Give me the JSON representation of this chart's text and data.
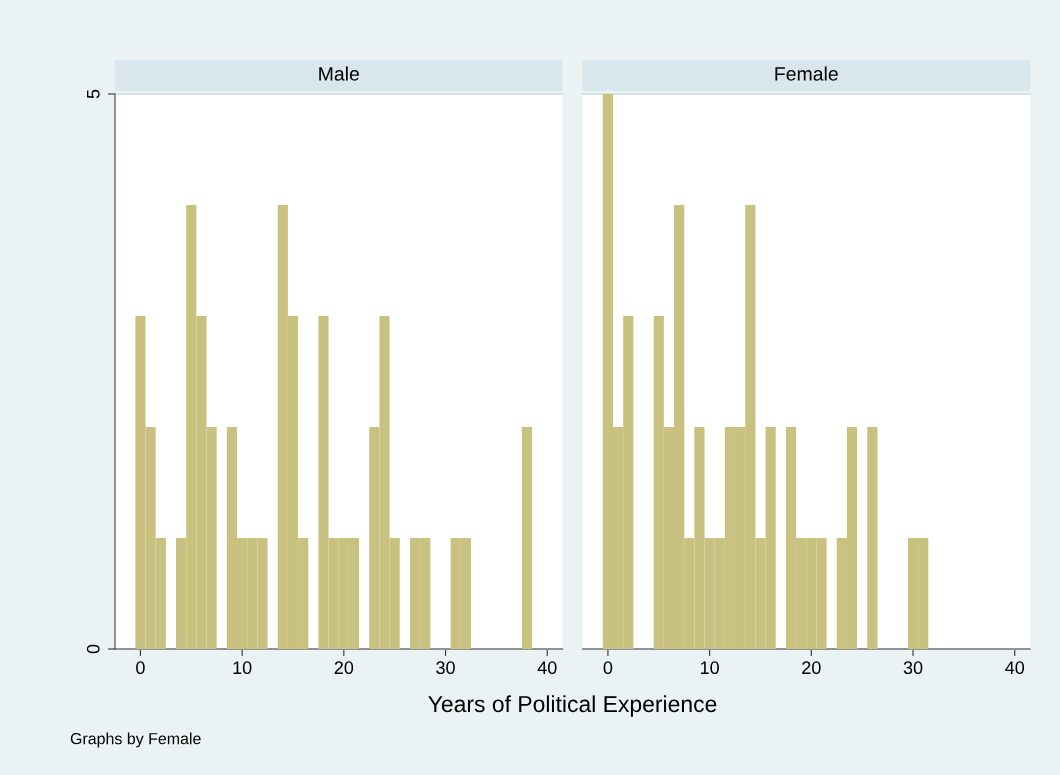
{
  "chart_data": [
    {
      "type": "histogram",
      "title": "Male",
      "xlabel": "Years of Political Experience",
      "annotations": [
        "Graphs by Female"
      ],
      "bins": [
        -0.5,
        0.5,
        1.5,
        2.5,
        3.5,
        4.5,
        5.5,
        6.5,
        7.5,
        8.5,
        9.5,
        10.5,
        11.5,
        12.5,
        13.5,
        14.5,
        15.5,
        16.5,
        17.5,
        18.5,
        19.5,
        20.5,
        21.5,
        22.5,
        23.5,
        24.5,
        25.5,
        26.5,
        27.5,
        28.5,
        29.5,
        30.5,
        31.5,
        32.5,
        33.5,
        34.5,
        35.5,
        36.5,
        37.5,
        38.5
      ],
      "values": [
        3,
        2,
        1,
        0,
        1,
        4,
        3,
        2,
        0,
        2,
        1,
        1,
        1,
        0,
        4,
        3,
        1,
        0,
        3,
        1,
        1,
        1,
        0,
        2,
        3,
        1,
        0,
        1,
        1,
        0,
        0,
        1,
        1,
        0,
        0,
        0,
        0,
        0,
        2
      ],
      "color": "#c9c180",
      "xlim": [
        -2.5,
        41.5
      ],
      "ylim": [
        0,
        5
      ],
      "xticks": [
        0,
        10,
        20,
        30,
        40
      ],
      "yticks": [
        0,
        5
      ],
      "grid": "y"
    },
    {
      "type": "histogram",
      "title": "Female",
      "tick_labels": "x",
      "bins": [
        -0.5,
        0.5,
        1.5,
        2.5,
        3.5,
        4.5,
        5.5,
        6.5,
        7.5,
        8.5,
        9.5,
        10.5,
        11.5,
        12.5,
        13.5,
        14.5,
        15.5,
        16.5,
        17.5,
        18.5,
        19.5,
        20.5,
        21.5,
        22.5,
        23.5,
        24.5,
        25.5,
        26.5,
        27.5,
        28.5,
        29.5,
        30.5,
        31.5,
        32.5,
        33.5,
        34.5,
        35.5,
        36.5,
        37.5,
        38.5
      ],
      "values": [
        5,
        2,
        3,
        0,
        0,
        3,
        2,
        4,
        1,
        2,
        1,
        1,
        2,
        2,
        4,
        1,
        2,
        0,
        2,
        1,
        1,
        1,
        0,
        1,
        2,
        0,
        2,
        0,
        0,
        0,
        1,
        1,
        0,
        0,
        0,
        0,
        0,
        0,
        0
      ],
      "color": "#c9c180",
      "xlim": [
        -2.5,
        41.5
      ],
      "ylim": [
        0,
        5
      ],
      "xticks": [
        0,
        10,
        20,
        30,
        40
      ],
      "yticks": [
        0,
        5
      ],
      "grid": "y"
    }
  ]
}
